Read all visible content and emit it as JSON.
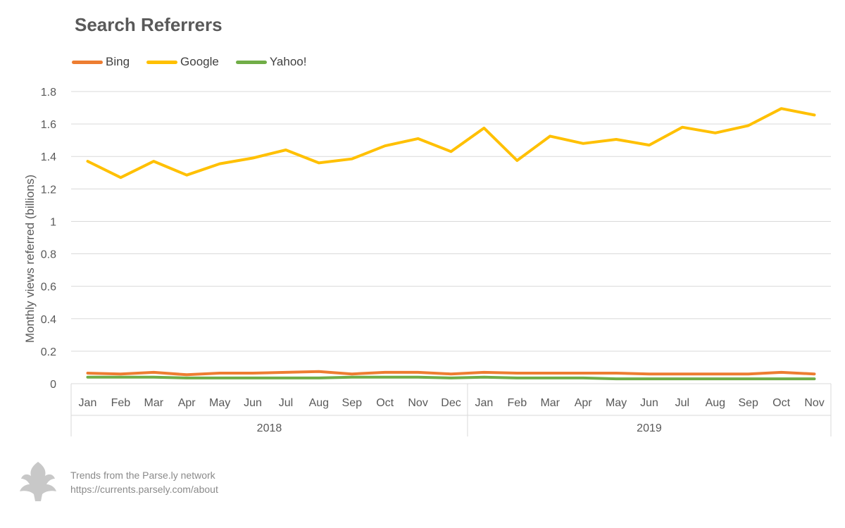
{
  "title": "Search Referrers",
  "footer": {
    "line1": "Trends from the Parse.ly network",
    "line2": "https://currents.parsely.com/about"
  },
  "logo": {
    "icon": "parsely-leaf-icon",
    "color": "#c8c8c8"
  },
  "chart_data": {
    "type": "line",
    "title": "Search Referrers",
    "ylabel": "Monthly views referred (billions)",
    "xlabel": "",
    "ylim": [
      0,
      1.8
    ],
    "yticks": [
      0,
      0.2,
      0.4,
      0.6,
      0.8,
      1,
      1.2,
      1.4,
      1.6,
      1.8
    ],
    "grid": true,
    "legend_position": "top-left",
    "categories": [
      "Jan",
      "Feb",
      "Mar",
      "Apr",
      "May",
      "Jun",
      "Jul",
      "Aug",
      "Sep",
      "Oct",
      "Nov",
      "Dec",
      "Jan",
      "Feb",
      "Mar",
      "Apr",
      "May",
      "Jun",
      "Jul",
      "Aug",
      "Sep",
      "Oct",
      "Nov"
    ],
    "groups": [
      {
        "label": "2018",
        "count": 12
      },
      {
        "label": "2019",
        "count": 11
      }
    ],
    "series": [
      {
        "name": "Bing",
        "color": "#ED7D31",
        "values": [
          0.065,
          0.06,
          0.07,
          0.055,
          0.065,
          0.065,
          0.07,
          0.075,
          0.06,
          0.07,
          0.07,
          0.06,
          0.07,
          0.065,
          0.065,
          0.065,
          0.065,
          0.06,
          0.06,
          0.06,
          0.06,
          0.07,
          0.06
        ]
      },
      {
        "name": "Google",
        "color": "#FFC000",
        "values": [
          1.37,
          1.27,
          1.37,
          1.285,
          1.355,
          1.39,
          1.44,
          1.36,
          1.385,
          1.465,
          1.51,
          1.43,
          1.575,
          1.375,
          1.525,
          1.48,
          1.505,
          1.47,
          1.58,
          1.545,
          1.59,
          1.695,
          1.655
        ]
      },
      {
        "name": "Yahoo!",
        "color": "#70AD47",
        "values": [
          0.04,
          0.04,
          0.04,
          0.035,
          0.035,
          0.035,
          0.035,
          0.035,
          0.04,
          0.04,
          0.04,
          0.035,
          0.04,
          0.035,
          0.035,
          0.035,
          0.03,
          0.03,
          0.03,
          0.03,
          0.03,
          0.03,
          0.03
        ]
      }
    ]
  }
}
